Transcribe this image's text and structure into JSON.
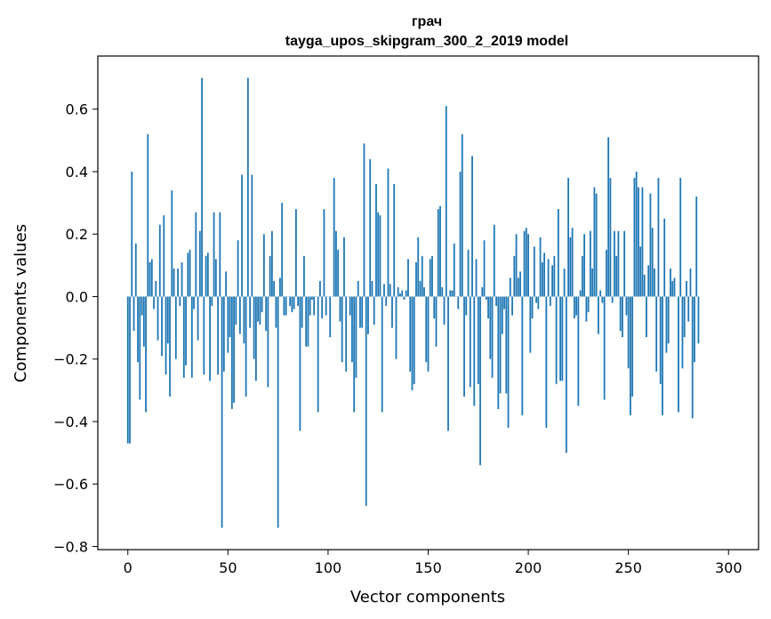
{
  "chart_data": {
    "type": "bar",
    "title": "грач",
    "subtitle": "tayga_upos_skipgram_300_2_2019 model",
    "xlabel": "Vector components",
    "ylabel": "Components values",
    "xlim": [
      -15,
      315
    ],
    "ylim": [
      -0.81,
      0.77
    ],
    "x_ticks": [
      0,
      50,
      100,
      150,
      200,
      250,
      300
    ],
    "y_ticks": [
      -0.8,
      -0.6,
      -0.4,
      -0.2,
      0.0,
      0.2,
      0.4,
      0.6
    ],
    "y_tick_labels": [
      "−0.8",
      "−0.6",
      "−0.4",
      "−0.2",
      "0.0",
      "0.2",
      "0.4",
      "0.6"
    ],
    "x_tick_labels": [
      "0",
      "50",
      "100",
      "150",
      "200",
      "250",
      "300"
    ],
    "grid": false,
    "bar_color": "#1f77b4",
    "series": [
      {
        "values": [
          -0.47,
          -0.47,
          0.4,
          -0.11,
          0.17,
          -0.21,
          -0.33,
          -0.06,
          -0.16,
          -0.37,
          0.52,
          0.11,
          0.12,
          -0.04,
          0.05,
          -0.14,
          0.23,
          -0.19,
          0.26,
          -0.25,
          -0.15,
          -0.32,
          0.34,
          0.09,
          -0.2,
          0.09,
          -0.03,
          0.11,
          -0.26,
          -0.22,
          0.14,
          0.15,
          -0.26,
          -0.04,
          0.27,
          -0.14,
          0.21,
          0.7,
          -0.25,
          0.13,
          0.14,
          -0.27,
          -0.03,
          0.27,
          0.12,
          -0.25,
          0.27,
          -0.74,
          -0.24,
          0.08,
          -0.18,
          -0.13,
          -0.36,
          -0.34,
          -0.09,
          0.18,
          -0.12,
          0.39,
          -0.15,
          -0.32,
          0.7,
          -0.1,
          0.39,
          -0.2,
          -0.27,
          -0.08,
          -0.09,
          -0.05,
          0.2,
          -0.11,
          -0.29,
          0.13,
          0.21,
          0.05,
          -0.1,
          -0.74,
          0.06,
          0.3,
          -0.06,
          -0.06,
          0.0,
          -0.03,
          -0.05,
          -0.04,
          0.28,
          -0.03,
          -0.43,
          -0.1,
          0.13,
          -0.16,
          -0.16,
          -0.06,
          -0.01,
          -0.06,
          0.0,
          -0.37,
          0.05,
          -0.07,
          0.28,
          -0.06,
          0.0,
          -0.13,
          0.0,
          0.38,
          0.21,
          0.15,
          -0.08,
          -0.21,
          0.19,
          -0.24,
          0.0,
          -0.06,
          -0.21,
          -0.37,
          -0.26,
          0.05,
          -0.1,
          -0.1,
          0.49,
          -0.67,
          -0.12,
          0.44,
          0.05,
          -0.09,
          0.36,
          0.27,
          0.26,
          -0.37,
          0.04,
          -0.03,
          0.41,
          0.04,
          -0.1,
          0.36,
          -0.2,
          0.03,
          0.01,
          0.02,
          -0.01,
          0.02,
          0.12,
          -0.24,
          -0.3,
          -0.28,
          0.11,
          0.19,
          0.05,
          0.13,
          0.03,
          -0.21,
          -0.24,
          0.12,
          0.13,
          -0.07,
          -0.16,
          0.28,
          0.29,
          0.03,
          -0.09,
          0.61,
          -0.43,
          0.02,
          0.02,
          0.17,
          0.0,
          -0.04,
          0.4,
          0.52,
          -0.32,
          -0.06,
          0.15,
          -0.29,
          0.45,
          -0.35,
          0.12,
          -0.28,
          -0.54,
          0.03,
          0.18,
          -0.01,
          -0.07,
          -0.2,
          -0.26,
          0.23,
          -0.03,
          -0.36,
          -0.31,
          -0.12,
          -0.04,
          -0.31,
          -0.42,
          0.06,
          -0.06,
          0.13,
          0.2,
          0.06,
          0.08,
          -0.38,
          0.21,
          0.22,
          0.2,
          -0.18,
          -0.07,
          0.16,
          -0.02,
          -0.04,
          0.19,
          0.11,
          0.14,
          -0.42,
          0.12,
          -0.03,
          0.1,
          0.13,
          -0.28,
          0.28,
          -0.27,
          -0.27,
          0.09,
          -0.5,
          0.38,
          0.19,
          0.22,
          -0.07,
          -0.06,
          -0.35,
          0.02,
          0.13,
          0.2,
          -0.08,
          -0.05,
          0.21,
          0.09,
          0.35,
          0.33,
          -0.12,
          0.02,
          -0.02,
          -0.33,
          0.15,
          0.51,
          0.38,
          -0.02,
          0.21,
          0.13,
          0.21,
          -0.11,
          -0.13,
          0.21,
          -0.06,
          -0.23,
          -0.38,
          -0.32,
          0.38,
          0.4,
          0.35,
          0.16,
          0.35,
          0.07,
          -0.13,
          0.1,
          0.33,
          0.22,
          0.09,
          -0.24,
          0.38,
          -0.28,
          -0.38,
          0.25,
          -0.18,
          -0.15,
          0.09,
          0.05,
          0.06,
          0.0,
          -0.37,
          0.38,
          -0.23,
          -0.13,
          0.05,
          -0.08,
          0.09,
          -0.39,
          -0.21,
          0.32,
          -0.15
        ]
      }
    ]
  }
}
